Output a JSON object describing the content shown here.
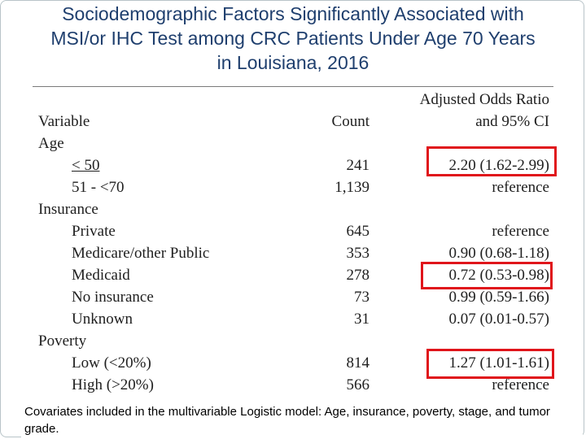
{
  "title": {
    "line1": "Sociodemographic Factors Significantly Associated with",
    "line2": "MSI/or IHC Test among CRC Patients Under Age 70  Years",
    "line3": "in Louisiana, 2016"
  },
  "table": {
    "header": {
      "variable": "Variable",
      "count": "Count",
      "odds_line1": "Adjusted Odds Ratio",
      "odds_line2": "and 95% CI"
    },
    "groups": {
      "age": "Age",
      "insurance": "Insurance",
      "poverty": "Poverty"
    },
    "rows": [
      {
        "label": "< 50",
        "count": "241",
        "ci": "2.20 (1.62-2.99)"
      },
      {
        "label": "51 - <70",
        "count": "1,139",
        "ci": "reference"
      },
      {
        "label": "Private",
        "count": "645",
        "ci": "reference"
      },
      {
        "label": "Medicare/other Public",
        "count": "353",
        "ci": "0.90 (0.68-1.18)"
      },
      {
        "label": "Medicaid",
        "count": "278",
        "ci": "0.72 (0.53-0.98)"
      },
      {
        "label": "No insurance",
        "count": "73",
        "ci": "0.99 (0.59-1.66)"
      },
      {
        "label": "Unknown",
        "count": "31",
        "ci": "0.07 (0.01-0.57)"
      },
      {
        "label": "Low (<20%)",
        "count": "814",
        "ci": "1.27 (1.01-1.61)"
      },
      {
        "label": "High (>20%)",
        "count": "566",
        "ci": "reference"
      }
    ]
  },
  "highlight_color": "#e0151b",
  "footnote": "Covariates included in the multivariable Logistic model: Age, insurance, poverty, stage, and tumor grade."
}
